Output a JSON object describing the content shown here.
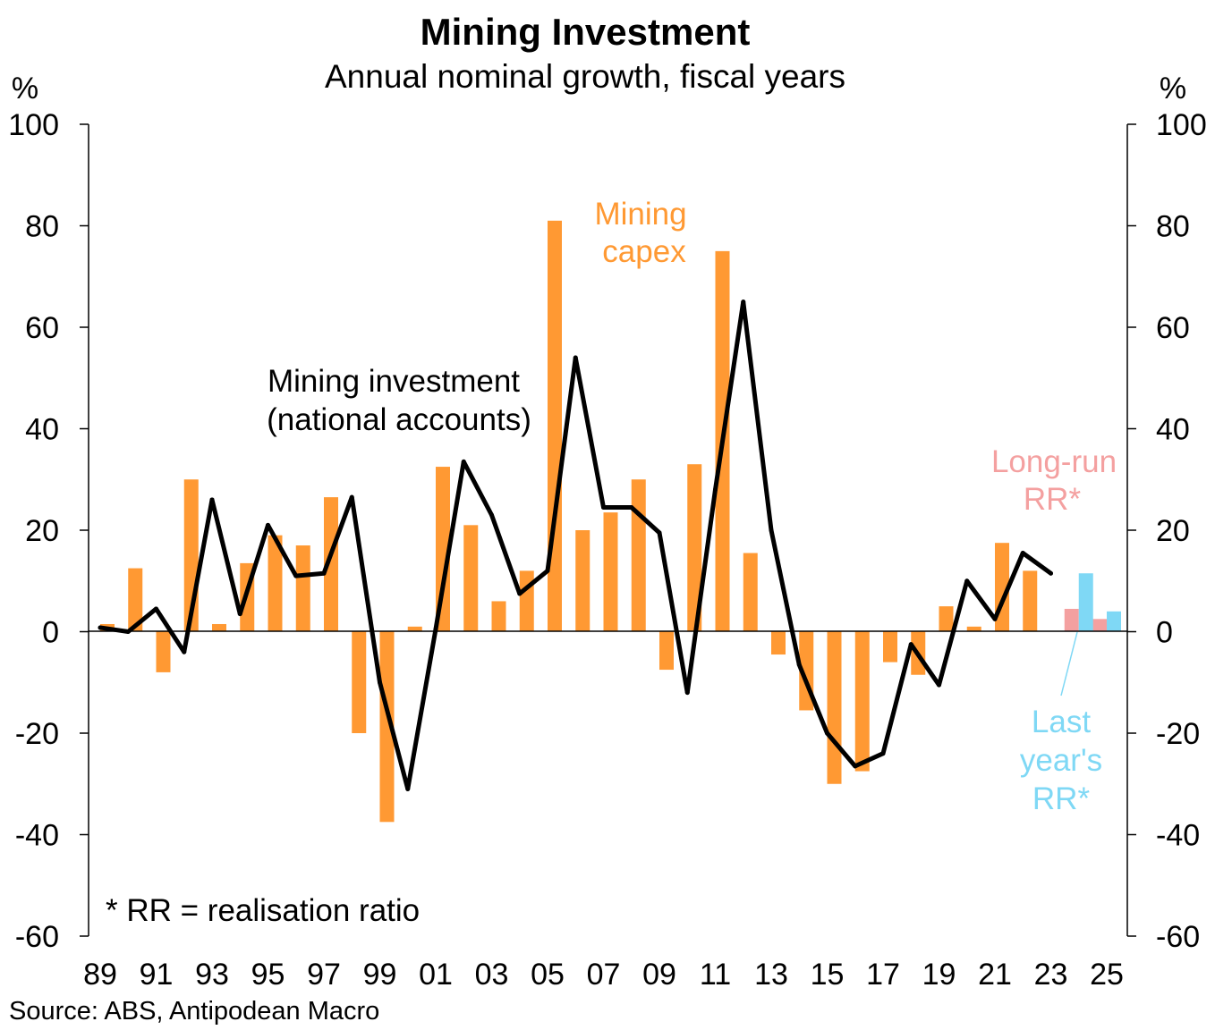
{
  "chart_data": {
    "type": "bar",
    "title": "Mining Investment",
    "subtitle": "Annual nominal growth, fiscal years",
    "ylabel_left": "%",
    "ylabel_right": "%",
    "ylim": [
      -60,
      100
    ],
    "yticks": [
      100,
      80,
      60,
      40,
      20,
      0,
      -20,
      -40,
      -60
    ],
    "ytick_labels": [
      "100",
      "80",
      "60",
      "40",
      "20",
      "0",
      "-20",
      "-40",
      "-60"
    ],
    "x_tick_labels": [
      "89",
      "91",
      "93",
      "95",
      "97",
      "99",
      "01",
      "03",
      "05",
      "07",
      "09",
      "11",
      "13",
      "15",
      "17",
      "19",
      "21",
      "23",
      "25"
    ],
    "years": [
      1989,
      1990,
      1991,
      1992,
      1993,
      1994,
      1995,
      1996,
      1997,
      1998,
      1999,
      2000,
      2001,
      2002,
      2003,
      2004,
      2005,
      2006,
      2007,
      2008,
      2009,
      2010,
      2011,
      2012,
      2013,
      2014,
      2015,
      2016,
      2017,
      2018,
      2019,
      2020,
      2021,
      2022,
      2023
    ],
    "series": [
      {
        "name": "Mining capex",
        "kind": "bar",
        "color": "#FF9933",
        "values": [
          1.5,
          12.5,
          -8,
          30,
          1.5,
          13.5,
          19,
          17,
          26.5,
          -20,
          -37.5,
          1,
          32.5,
          21,
          6,
          12,
          81,
          20,
          23.5,
          30,
          -7.5,
          33,
          75,
          15.5,
          -4.5,
          -15.5,
          -30,
          -27.5,
          -6,
          -8.5,
          5,
          1,
          17.5,
          12
        ]
      },
      {
        "name": "Mining investment (national accounts)",
        "kind": "line",
        "color": "#000000",
        "values": [
          0.8,
          0,
          4.5,
          -4,
          26,
          3.5,
          21,
          11,
          11.5,
          26.5,
          -10,
          -31,
          0.5,
          33.5,
          23,
          7.5,
          12,
          54,
          24.5,
          24.5,
          19.5,
          -12,
          28,
          65,
          20,
          -6.5,
          -20,
          -26.5,
          -24,
          -2.5,
          -10.5,
          10,
          2.5,
          15.5,
          11.5
        ]
      },
      {
        "name": "Long-run RR*",
        "kind": "bar",
        "color": "#F4A0A0",
        "years": [
          2024,
          2025
        ],
        "values": [
          4.5,
          2.5
        ]
      },
      {
        "name": "Last year's RR*",
        "kind": "bar",
        "color": "#7FD8F5",
        "years": [
          2024,
          2025
        ],
        "values": [
          11.5,
          4
        ]
      }
    ],
    "annotations": {
      "capex_label_line1": "Mining",
      "capex_label_line2": "capex",
      "investment_label_line1": "Mining investment",
      "investment_label_line2": "(national accounts)",
      "longrun_label_line1": "Long-run",
      "longrun_label_line2": "RR*",
      "lastyear_label_line1": "Last",
      "lastyear_label_line2": "year's",
      "lastyear_label_line3": "RR*",
      "footnote": "* RR = realisation ratio"
    },
    "source": "Source: ABS, Antipodean Macro"
  }
}
